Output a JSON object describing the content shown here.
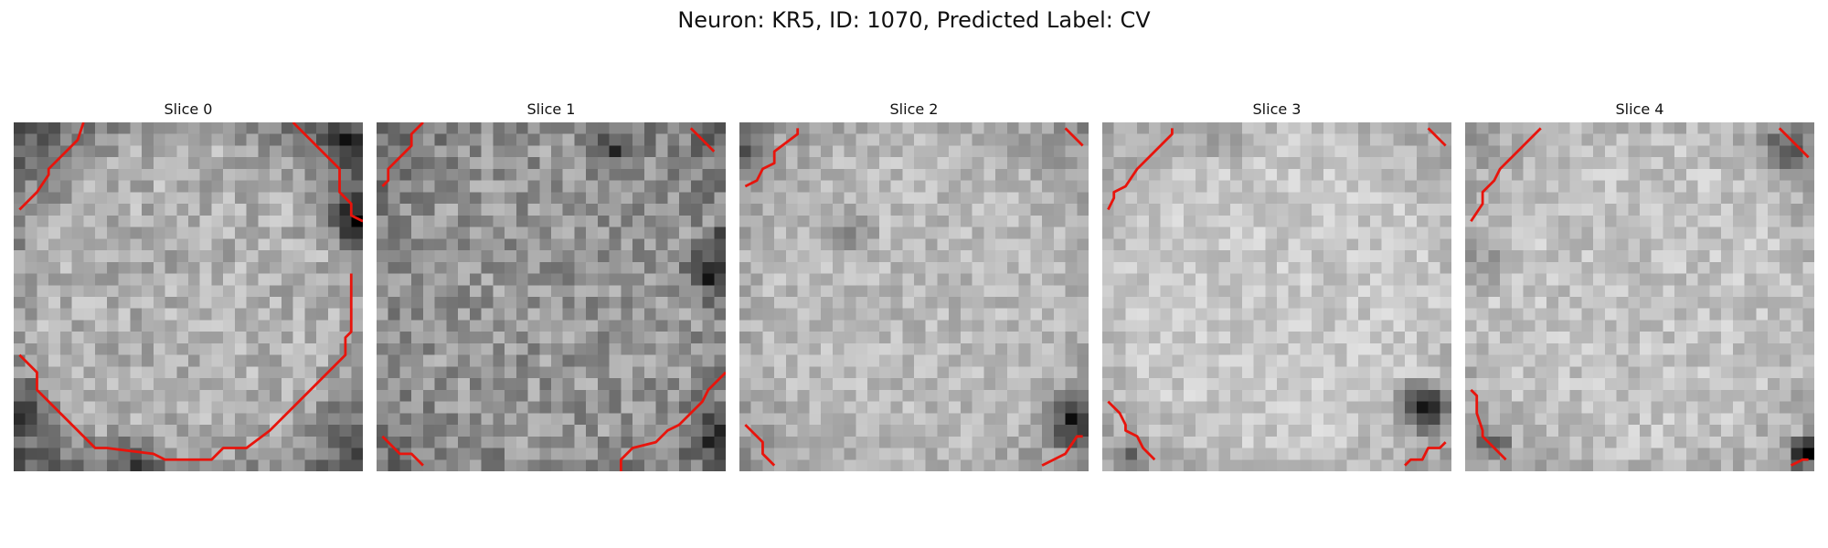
{
  "figure": {
    "title": "Neuron: KR5, ID: 1070, Predicted Label: CV"
  },
  "panels": [
    {
      "title": "Slice 0"
    },
    {
      "title": "Slice 1"
    },
    {
      "title": "Slice 2"
    },
    {
      "title": "Slice 3"
    },
    {
      "title": "Slice 4"
    }
  ],
  "colors": {
    "contour": "#e8140c",
    "background": "#ffffff"
  }
}
